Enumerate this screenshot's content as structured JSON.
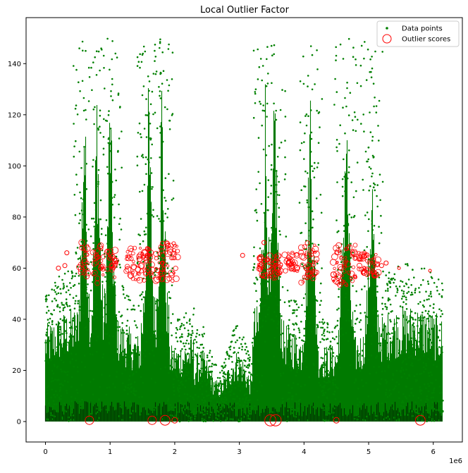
{
  "chart_data": {
    "type": "scatter",
    "title": "Local Outlier Factor",
    "xlabel": "",
    "ylabel": "",
    "x_offset_label": "1e6",
    "xlim": [
      -300000,
      6450000
    ],
    "ylim": [
      -8,
      158
    ],
    "x_ticks": [
      0,
      1000000,
      2000000,
      3000000,
      4000000,
      5000000,
      6000000
    ],
    "x_tick_labels": [
      "0",
      "1",
      "2",
      "3",
      "4",
      "5",
      "6"
    ],
    "y_ticks": [
      0,
      20,
      40,
      60,
      80,
      100,
      120,
      140
    ],
    "y_tick_labels": [
      "0",
      "20",
      "40",
      "60",
      "80",
      "100",
      "120",
      "140"
    ],
    "grid": false,
    "legend": {
      "placement": "upper right",
      "entries": [
        {
          "label": "Data points",
          "color": "#008000",
          "marker": "dot"
        },
        {
          "label": "Outlier scores",
          "color": "#ff0000",
          "marker": "open-circle"
        }
      ]
    },
    "series": [
      {
        "name": "Data points",
        "color": "#008000",
        "description_note": "dense green points; tall spike regions listed below",
        "x_range": [
          0,
          6150000
        ],
        "y_range": [
          0,
          150
        ],
        "spike_regions": [
          {
            "x_center": 600000,
            "y_max": 148
          },
          {
            "x_center": 800000,
            "y_max": 150
          },
          {
            "x_center": 1000000,
            "y_max": 149
          },
          {
            "x_center": 1600000,
            "y_max": 145
          },
          {
            "x_center": 1800000,
            "y_max": 150
          },
          {
            "x_center": 3400000,
            "y_max": 145
          },
          {
            "x_center": 3550000,
            "y_max": 150
          },
          {
            "x_center": 4100000,
            "y_max": 147
          },
          {
            "x_center": 4650000,
            "y_max": 148
          },
          {
            "x_center": 5050000,
            "y_max": 115
          }
        ]
      },
      {
        "name": "Outlier scores",
        "color": "#ff0000",
        "points": [
          {
            "x": 680000,
            "y": 0.5,
            "score": 6
          },
          {
            "x": 1650000,
            "y": 0.5,
            "score": 6
          },
          {
            "x": 1850000,
            "y": 0.5,
            "score": 7
          },
          {
            "x": 2000000,
            "y": 0.5,
            "score": 4
          },
          {
            "x": 3480000,
            "y": 0.5,
            "score": 8
          },
          {
            "x": 3560000,
            "y": 0.5,
            "score": 8
          },
          {
            "x": 4500000,
            "y": 0.5,
            "score": 4
          },
          {
            "x": 5800000,
            "y": 0.5,
            "score": 7
          },
          {
            "x": 200000,
            "y": 60,
            "score": 3
          },
          {
            "x": 300000,
            "y": 61,
            "score": 3
          },
          {
            "x": 330000,
            "y": 66,
            "score": 3
          },
          {
            "x": 3050000,
            "y": 65,
            "score": 3
          },
          {
            "x": 3380000,
            "y": 70,
            "score": 3
          },
          {
            "x": 5200000,
            "y": 61,
            "score": 3
          },
          {
            "x": 5270000,
            "y": 62,
            "score": 3
          },
          {
            "x": 5470000,
            "y": 60,
            "score": 2
          },
          {
            "x": 5950000,
            "y": 59,
            "score": 2
          }
        ],
        "clusters": [
          {
            "x_min": 520000,
            "x_max": 660000,
            "y_min": 55,
            "y_max": 70
          },
          {
            "x_min": 730000,
            "x_max": 900000,
            "y_min": 54,
            "y_max": 70
          },
          {
            "x_min": 950000,
            "x_max": 1100000,
            "y_min": 56,
            "y_max": 67
          },
          {
            "x_min": 1250000,
            "x_max": 1650000,
            "y_min": 55,
            "y_max": 68
          },
          {
            "x_min": 1700000,
            "x_max": 2050000,
            "y_min": 55,
            "y_max": 70
          },
          {
            "x_min": 3300000,
            "x_max": 3650000,
            "y_min": 56,
            "y_max": 65
          },
          {
            "x_min": 3700000,
            "x_max": 3900000,
            "y_min": 58,
            "y_max": 66
          },
          {
            "x_min": 3950000,
            "x_max": 4200000,
            "y_min": 54,
            "y_max": 70
          },
          {
            "x_min": 4450000,
            "x_max": 4800000,
            "y_min": 53,
            "y_max": 69
          },
          {
            "x_min": 4850000,
            "x_max": 5150000,
            "y_min": 57,
            "y_max": 66
          }
        ]
      }
    ]
  }
}
